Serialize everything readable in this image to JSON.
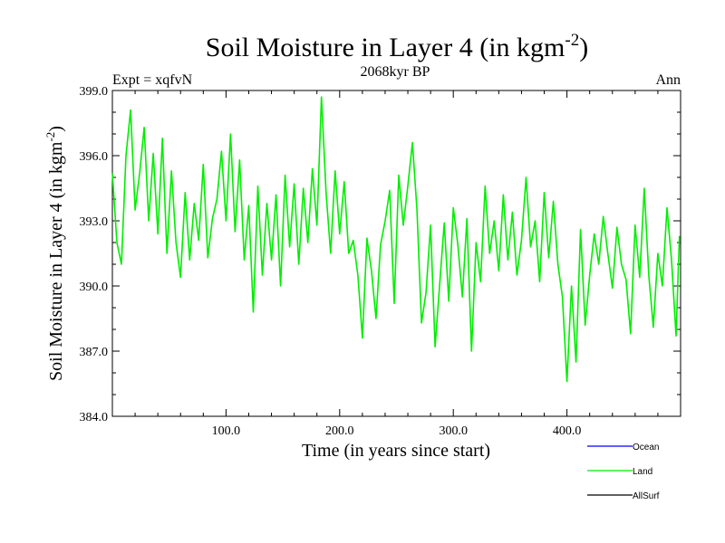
{
  "chart_data": {
    "type": "line",
    "title": "Soil Moisture in Layer 4 (in kgm",
    "title_sup": "-2",
    "title_close": ")",
    "subtitle": "2068kyr BP",
    "left_label": "Expt = xqfvN",
    "right_label": "Ann",
    "xlabel": "Time (in years since start)",
    "ylabel": "Soil Moisture in Layer 4 (in kgm",
    "ylabel_sup": "-2",
    "ylabel_close": ")",
    "xlim": [
      0,
      500
    ],
    "ylim": [
      384.0,
      399.0
    ],
    "xticks": [
      100,
      200,
      300,
      400
    ],
    "xtick_labels": [
      "100.0",
      "200.0",
      "300.0",
      "400.0"
    ],
    "yticks": [
      384,
      387,
      390,
      393,
      396,
      399
    ],
    "ytick_labels": [
      "384.0",
      "387.0",
      "390.0",
      "393.0",
      "396.0",
      "399.0"
    ],
    "colors": {
      "Ocean": "#0000ff",
      "Land": "#00ee00",
      "AllSurf": "#000000"
    },
    "legend": [
      {
        "name": "Ocean",
        "color": "#0000ff"
      },
      {
        "name": "Land",
        "color": "#00ee00"
      },
      {
        "name": "AllSurf",
        "color": "#000000"
      }
    ],
    "series": [
      {
        "name": "Land",
        "color": "#00ee00",
        "x": [
          0,
          4,
          8,
          12,
          16,
          20,
          24,
          28,
          32,
          36,
          40,
          44,
          48,
          52,
          56,
          60,
          64,
          68,
          72,
          76,
          80,
          84,
          88,
          92,
          96,
          100,
          104,
          108,
          112,
          116,
          120,
          124,
          128,
          132,
          136,
          140,
          144,
          148,
          152,
          156,
          160,
          164,
          168,
          172,
          176,
          180,
          184,
          188,
          192,
          196,
          200,
          204,
          208,
          212,
          216,
          220,
          224,
          228,
          232,
          236,
          240,
          244,
          248,
          252,
          256,
          260,
          264,
          268,
          272,
          276,
          280,
          284,
          288,
          292,
          296,
          300,
          304,
          308,
          312,
          316,
          320,
          324,
          328,
          332,
          336,
          340,
          344,
          348,
          352,
          356,
          360,
          364,
          368,
          372,
          376,
          380,
          384,
          388,
          392,
          396,
          400,
          404,
          408,
          412,
          416,
          420,
          424,
          428,
          432,
          436,
          440,
          444,
          448,
          452,
          456,
          460,
          464,
          468,
          472,
          476,
          480,
          484,
          488,
          492,
          496,
          499
        ],
        "values": [
          395.2,
          392.0,
          391.0,
          396.0,
          398.1,
          393.5,
          395.2,
          397.3,
          393.0,
          396.1,
          392.4,
          396.8,
          391.5,
          395.3,
          392.0,
          390.4,
          394.3,
          391.2,
          393.8,
          392.1,
          395.6,
          391.3,
          393.1,
          394.0,
          396.2,
          393.0,
          397.0,
          392.5,
          395.8,
          391.2,
          393.7,
          388.8,
          394.6,
          390.5,
          393.8,
          391.2,
          394.2,
          390.0,
          395.1,
          391.8,
          394.7,
          391.0,
          394.5,
          392.0,
          395.4,
          392.8,
          398.7,
          394.3,
          391.5,
          395.3,
          392.4,
          394.8,
          391.5,
          392.1,
          390.5,
          387.6,
          392.2,
          390.7,
          388.5,
          391.9,
          393.0,
          394.4,
          389.2,
          395.1,
          392.8,
          394.6,
          396.6,
          393.5,
          388.3,
          389.7,
          392.8,
          387.2,
          390.1,
          392.9,
          389.3,
          393.6,
          391.9,
          389.5,
          393.1,
          387.0,
          392.0,
          390.2,
          394.6,
          391.5,
          393.0,
          390.7,
          394.2,
          391.2,
          393.4,
          390.5,
          392.1,
          395.0,
          391.8,
          393.0,
          390.2,
          394.3,
          391.3,
          393.9,
          391.0,
          389.5,
          385.6,
          390.0,
          386.5,
          392.6,
          388.2,
          390.5,
          392.4,
          391.0,
          393.2,
          391.5,
          389.9,
          392.7,
          391.0,
          390.3,
          387.8,
          392.8,
          390.4,
          394.5,
          390.5,
          388.1,
          391.5,
          390.0,
          393.6,
          391.2,
          387.7,
          392.3
        ]
      }
    ]
  }
}
